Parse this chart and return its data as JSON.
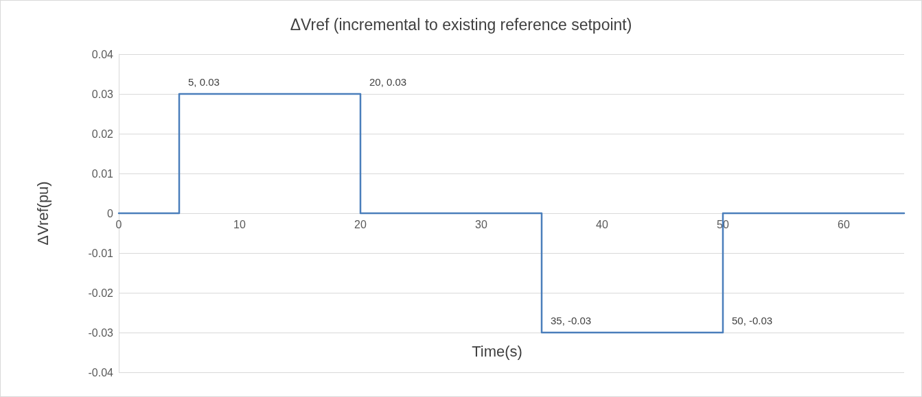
{
  "chart_data": {
    "type": "line",
    "title": "ΔVref (incremental to existing reference setpoint)",
    "xlabel": "Time(s)",
    "ylabel": "ΔVref(pu)",
    "x": [
      0,
      5,
      5,
      20,
      20,
      35,
      35,
      50,
      50,
      65
    ],
    "series": [
      {
        "color": "#4a7ebb",
        "values": [
          0,
          0,
          0.03,
          0.03,
          0,
          0,
          -0.03,
          -0.03,
          0,
          0
        ]
      }
    ],
    "xlim": [
      0,
      65
    ],
    "xticks": [
      0,
      10,
      20,
      30,
      40,
      50,
      60
    ],
    "ylim": [
      -0.04,
      0.04
    ],
    "yticks": [
      -0.04,
      -0.03,
      -0.02,
      -0.01,
      0,
      0.01,
      0.02,
      0.03,
      0.04
    ],
    "grid": "y",
    "marker": "none",
    "line_style": "solid",
    "annotations": [
      {
        "text": "5, 0.03",
        "x": 5,
        "y": 0.03
      },
      {
        "text": "20, 0.03",
        "x": 20,
        "y": 0.03
      },
      {
        "text": "35, -0.03",
        "x": 35,
        "y": -0.03
      },
      {
        "text": "50, -0.03",
        "x": 50,
        "y": -0.03
      }
    ]
  }
}
